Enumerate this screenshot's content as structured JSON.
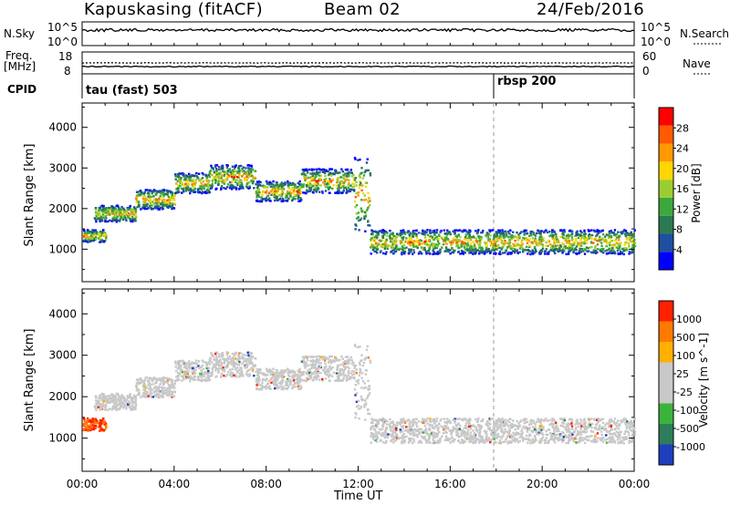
{
  "header": {
    "radar": "Kapuskasing (fitACF)",
    "beam": "Beam 02",
    "date": "24/Feb/2016"
  },
  "strip_labels": {
    "nsky": "N.Sky",
    "nsky_ticks": [
      "10^5",
      "10^0"
    ],
    "freq": "Freq.",
    "freq_unit": "[MHz]",
    "freq_ticks": [
      "18",
      "8"
    ],
    "cpid": "CPID",
    "nsearch": "N.Search",
    "nsearch_ticks": [
      "10^5",
      "10^0"
    ],
    "nave": "Nave",
    "nave_ticks": [
      "60",
      "0"
    ],
    "cpid_a": "tau (fast) 503",
    "cpid_b": "rbsp 200"
  },
  "chart_data": [
    {
      "type": "heatmap",
      "title": "",
      "ylabel": "Slant Range [km]",
      "xlabel": "Time UT",
      "ylim": [
        200,
        4600
      ],
      "xlim": [
        "00:00",
        "24:00"
      ],
      "y_ticks": [
        "4000",
        "3000",
        "2000",
        "1000"
      ],
      "colorbar": {
        "label": "Power [dB]",
        "ticks": [
          "28",
          "24",
          "20",
          "16",
          "12",
          "8",
          "4"
        ],
        "colors": [
          "#0000ff",
          "#1f4fa0",
          "#2c7a52",
          "#3ca83c",
          "#9acd32",
          "#ffd700",
          "#ff9900",
          "#ff5a00",
          "#ff0000"
        ]
      },
      "echo_bands": [
        {
          "t_start": 0.0,
          "t_end": 1.0,
          "range_start": 1200,
          "range_end": 1500
        },
        {
          "t_start": 0.5,
          "t_end": 2.3,
          "range_start": 1700,
          "range_end": 2100
        },
        {
          "t_start": 2.3,
          "t_end": 4.0,
          "range_start": 2000,
          "range_end": 2500
        },
        {
          "t_start": 4.0,
          "t_end": 5.5,
          "range_start": 2400,
          "range_end": 2900
        },
        {
          "t_start": 5.5,
          "t_end": 7.5,
          "range_start": 2500,
          "range_end": 3100
        },
        {
          "t_start": 7.5,
          "t_end": 9.5,
          "range_start": 2200,
          "range_end": 2700
        },
        {
          "t_start": 9.5,
          "t_end": 11.8,
          "range_start": 2400,
          "range_end": 3000
        },
        {
          "t_start": 11.8,
          "t_end": 12.5,
          "range_start": 1400,
          "range_end": 3300
        },
        {
          "t_start": 12.5,
          "t_end": 24.0,
          "range_start": 900,
          "range_end": 1500
        }
      ]
    },
    {
      "type": "heatmap",
      "title": "",
      "ylabel": "Slant Range [km]",
      "xlabel": "Time UT",
      "ylim": [
        200,
        4600
      ],
      "xlim": [
        "00:00",
        "24:00"
      ],
      "y_ticks": [
        "4000",
        "3000",
        "2000",
        "1000"
      ],
      "x_ticks": [
        "00:00",
        "04:00",
        "08:00",
        "12:00",
        "16:00",
        "20:00",
        "00:00"
      ],
      "colorbar": {
        "label": "Velocity [m s^-1]",
        "ticks": [
          "1000",
          "500",
          "100",
          "25",
          "-25",
          "-100",
          "-500",
          "-1000"
        ],
        "colors": [
          "#1f3fbf",
          "#2e7d5a",
          "#3cb43c",
          "#c8c8c8",
          "#c8c8c8",
          "#ffb000",
          "#ff7a00",
          "#ff2000"
        ]
      }
    }
  ],
  "xaxis": {
    "ticks": [
      "00:00",
      "04:00",
      "08:00",
      "12:00",
      "16:00",
      "20:00",
      "00:00"
    ],
    "label": "Time UT"
  },
  "colors": {
    "ground_scatter": "#c8c8c8",
    "strong_power": "#ff3000",
    "weak_power": "#1f4fa0"
  }
}
